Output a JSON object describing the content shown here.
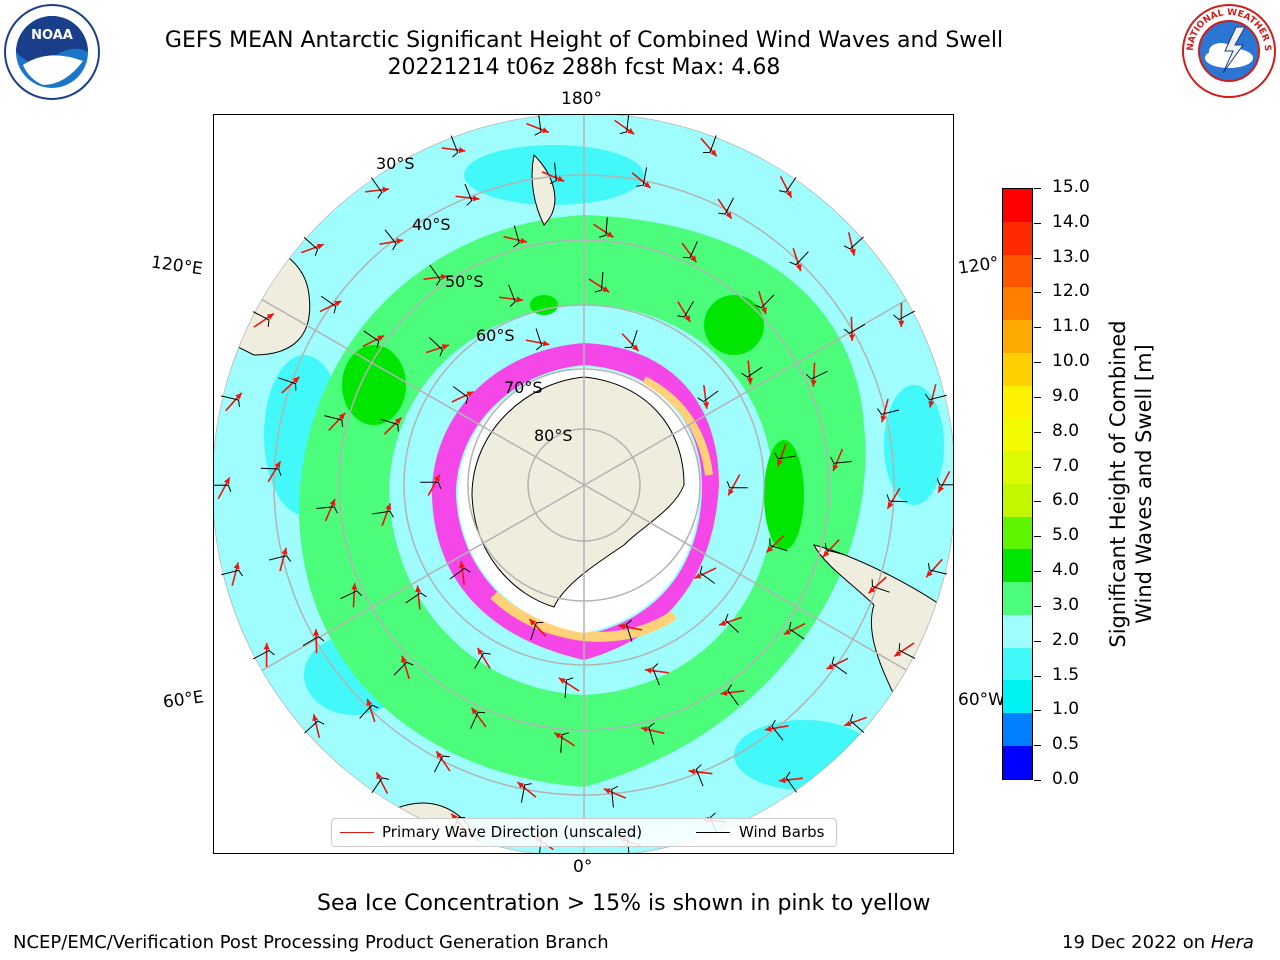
{
  "header": {
    "title_line1": "GEFS MEAN Antarctic Significant Height of Combined Wind Waves and Swell",
    "title_line2": "20221214 t06z 288h fcst   Max: 4.68"
  },
  "logos": {
    "noaa_text": "NOAA",
    "nws_text": "NATIONAL WEATHER SERVICE"
  },
  "map": {
    "longitude_labels": {
      "top": "180°",
      "bottom": "0°",
      "upper_left": "120°E",
      "upper_right": "120°",
      "lower_left": "60°E",
      "lower_right": "60°W"
    },
    "latitude_labels": [
      "30°S",
      "40°S",
      "50°S",
      "60°S",
      "70°S",
      "80°S"
    ],
    "colors": {
      "land": "#efedde",
      "ocean_low": "#9ffdfd",
      "ocean_mid": "#43f8f8",
      "wave_3_4": "#4cfc7b",
      "wave_4_5": "#00e600",
      "ice_pink": "#f547e8",
      "ice_yellow": "#ffd27a",
      "graticule": "#b3b3b3",
      "arrow": "#e8170f"
    }
  },
  "legend": {
    "primary_wave": "Primary Wave Direction (unscaled)",
    "wind_barbs": "Wind Barbs"
  },
  "colorbar": {
    "title_line1": "Significant Height of Combined",
    "title_line2": "Wind Waves and Swell [m]",
    "ticks": [
      "15.0",
      "14.0",
      "13.0",
      "12.0",
      "11.0",
      "10.0",
      "9.0",
      "8.0",
      "7.0",
      "6.0",
      "5.0",
      "4.0",
      "3.0",
      "2.0",
      "1.5",
      "1.0",
      "0.5",
      "0.0"
    ],
    "colors": [
      "#ff0000",
      "#ff2a00",
      "#ff5500",
      "#ff8000",
      "#ffaa00",
      "#ffd000",
      "#fff200",
      "#f3fb00",
      "#dcfb00",
      "#c3f700",
      "#5ff500",
      "#00e600",
      "#4cfc7b",
      "#9ffdfd",
      "#43f8f8",
      "#00f3f3",
      "#0080ff",
      "#0000ff"
    ]
  },
  "notes": {
    "sea_ice": "Sea Ice Concentration > 15% is shown in pink to yellow"
  },
  "footer": {
    "left": "NCEP/EMC/Verification Post Processing Product Generation Branch",
    "right_prefix": "19 Dec 2022 on ",
    "right_host": "Hera"
  }
}
